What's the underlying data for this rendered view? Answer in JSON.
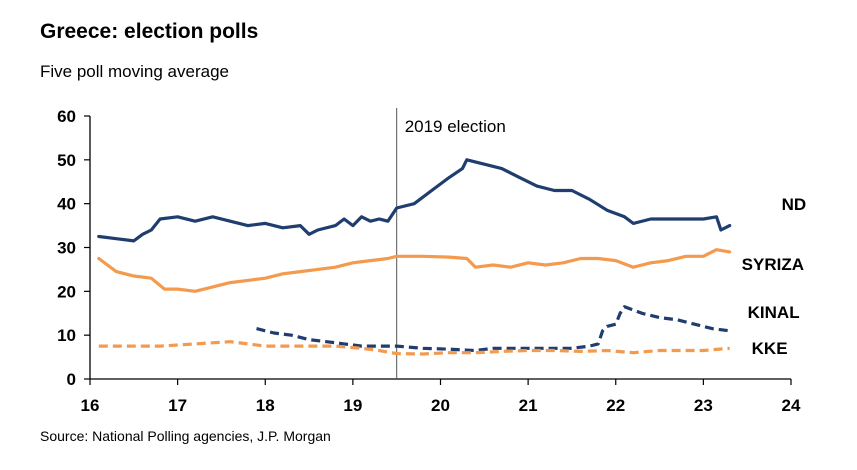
{
  "chart_data": {
    "type": "line",
    "title": "Greece: election polls",
    "subtitle": "Five poll moving average",
    "source": "Source: National Polling agencies, J.P. Morgan",
    "xlabel": "",
    "ylabel": "",
    "xlim": [
      16,
      24
    ],
    "ylim": [
      0,
      60
    ],
    "x_ticks": [
      "16",
      "17",
      "18",
      "19",
      "20",
      "21",
      "22",
      "23",
      "24"
    ],
    "y_ticks": [
      "0",
      "10",
      "20",
      "30",
      "40",
      "50",
      "60"
    ],
    "annotations": [
      {
        "type": "vline",
        "x": 19.5,
        "label": "2019 election"
      }
    ],
    "series": [
      {
        "name": "ND",
        "color": "#1f3d6e",
        "dash": "solid",
        "points": [
          [
            16.1,
            32.5
          ],
          [
            16.3,
            32
          ],
          [
            16.5,
            31.5
          ],
          [
            16.6,
            33
          ],
          [
            16.7,
            34
          ],
          [
            16.8,
            36.5
          ],
          [
            17.0,
            37
          ],
          [
            17.2,
            36
          ],
          [
            17.4,
            37
          ],
          [
            17.6,
            36
          ],
          [
            17.8,
            35
          ],
          [
            18.0,
            35.5
          ],
          [
            18.2,
            34.5
          ],
          [
            18.4,
            35
          ],
          [
            18.5,
            33
          ],
          [
            18.6,
            34
          ],
          [
            18.8,
            35
          ],
          [
            18.9,
            36.5
          ],
          [
            19.0,
            35
          ],
          [
            19.1,
            37
          ],
          [
            19.2,
            36
          ],
          [
            19.3,
            36.5
          ],
          [
            19.4,
            36
          ],
          [
            19.5,
            39
          ],
          [
            19.7,
            40
          ],
          [
            19.9,
            43
          ],
          [
            20.1,
            46
          ],
          [
            20.25,
            48
          ],
          [
            20.3,
            50
          ],
          [
            20.5,
            49
          ],
          [
            20.7,
            48
          ],
          [
            20.9,
            46
          ],
          [
            21.1,
            44
          ],
          [
            21.3,
            43
          ],
          [
            21.5,
            43
          ],
          [
            21.7,
            41
          ],
          [
            21.9,
            38.5
          ],
          [
            22.1,
            37
          ],
          [
            22.2,
            35.5
          ],
          [
            22.4,
            36.5
          ],
          [
            22.6,
            36.5
          ],
          [
            22.8,
            36.5
          ],
          [
            23.0,
            36.5
          ],
          [
            23.15,
            37
          ],
          [
            23.2,
            34
          ],
          [
            23.3,
            35
          ]
        ]
      },
      {
        "name": "SYRIZA",
        "color": "#f39a4e",
        "dash": "solid",
        "points": [
          [
            16.1,
            27.5
          ],
          [
            16.3,
            24.5
          ],
          [
            16.5,
            23.5
          ],
          [
            16.7,
            23
          ],
          [
            16.85,
            20.5
          ],
          [
            17.0,
            20.5
          ],
          [
            17.2,
            20
          ],
          [
            17.4,
            21
          ],
          [
            17.6,
            22
          ],
          [
            17.8,
            22.5
          ],
          [
            18.0,
            23
          ],
          [
            18.2,
            24
          ],
          [
            18.4,
            24.5
          ],
          [
            18.6,
            25
          ],
          [
            18.8,
            25.5
          ],
          [
            19.0,
            26.5
          ],
          [
            19.2,
            27
          ],
          [
            19.4,
            27.5
          ],
          [
            19.5,
            28
          ],
          [
            19.8,
            28
          ],
          [
            20.1,
            27.8
          ],
          [
            20.3,
            27.5
          ],
          [
            20.4,
            25.5
          ],
          [
            20.6,
            26
          ],
          [
            20.8,
            25.5
          ],
          [
            21.0,
            26.5
          ],
          [
            21.2,
            26
          ],
          [
            21.4,
            26.5
          ],
          [
            21.6,
            27.5
          ],
          [
            21.8,
            27.5
          ],
          [
            22.0,
            27
          ],
          [
            22.2,
            25.5
          ],
          [
            22.4,
            26.5
          ],
          [
            22.6,
            27
          ],
          [
            22.8,
            28
          ],
          [
            23.0,
            28
          ],
          [
            23.15,
            29.5
          ],
          [
            23.3,
            29
          ]
        ]
      },
      {
        "name": "KINAL",
        "color": "#1f3d6e",
        "dash": "dashed",
        "points": [
          [
            17.9,
            11.5
          ],
          [
            18.1,
            10.5
          ],
          [
            18.3,
            10
          ],
          [
            18.5,
            9
          ],
          [
            18.7,
            8.5
          ],
          [
            18.9,
            8
          ],
          [
            19.1,
            7.5
          ],
          [
            19.3,
            7.5
          ],
          [
            19.5,
            7.5
          ],
          [
            19.8,
            7
          ],
          [
            20.1,
            6.8
          ],
          [
            20.4,
            6.5
          ],
          [
            20.6,
            7
          ],
          [
            20.9,
            7
          ],
          [
            21.2,
            7
          ],
          [
            21.5,
            7
          ],
          [
            21.7,
            7.5
          ],
          [
            21.8,
            8
          ],
          [
            21.85,
            11
          ],
          [
            21.9,
            12
          ],
          [
            22.0,
            12.5
          ],
          [
            22.05,
            15
          ],
          [
            22.1,
            16.5
          ],
          [
            22.3,
            15
          ],
          [
            22.5,
            14
          ],
          [
            22.7,
            13.5
          ],
          [
            22.9,
            12.5
          ],
          [
            23.1,
            11.5
          ],
          [
            23.3,
            11
          ]
        ]
      },
      {
        "name": "KKE",
        "color": "#f39a4e",
        "dash": "dashed",
        "points": [
          [
            16.1,
            7.5
          ],
          [
            16.5,
            7.5
          ],
          [
            16.8,
            7.5
          ],
          [
            17.2,
            8
          ],
          [
            17.6,
            8.5
          ],
          [
            17.8,
            8
          ],
          [
            18.0,
            7.5
          ],
          [
            18.4,
            7.5
          ],
          [
            18.8,
            7.5
          ],
          [
            19.1,
            7
          ],
          [
            19.3,
            6.5
          ],
          [
            19.5,
            5.8
          ],
          [
            19.8,
            5.7
          ],
          [
            20.1,
            6
          ],
          [
            20.4,
            6
          ],
          [
            20.7,
            6.3
          ],
          [
            21.0,
            6.5
          ],
          [
            21.3,
            6.5
          ],
          [
            21.6,
            6.3
          ],
          [
            21.9,
            6.5
          ],
          [
            22.2,
            6
          ],
          [
            22.5,
            6.5
          ],
          [
            22.8,
            6.5
          ],
          [
            23.0,
            6.5
          ],
          [
            23.3,
            7
          ]
        ]
      }
    ]
  }
}
